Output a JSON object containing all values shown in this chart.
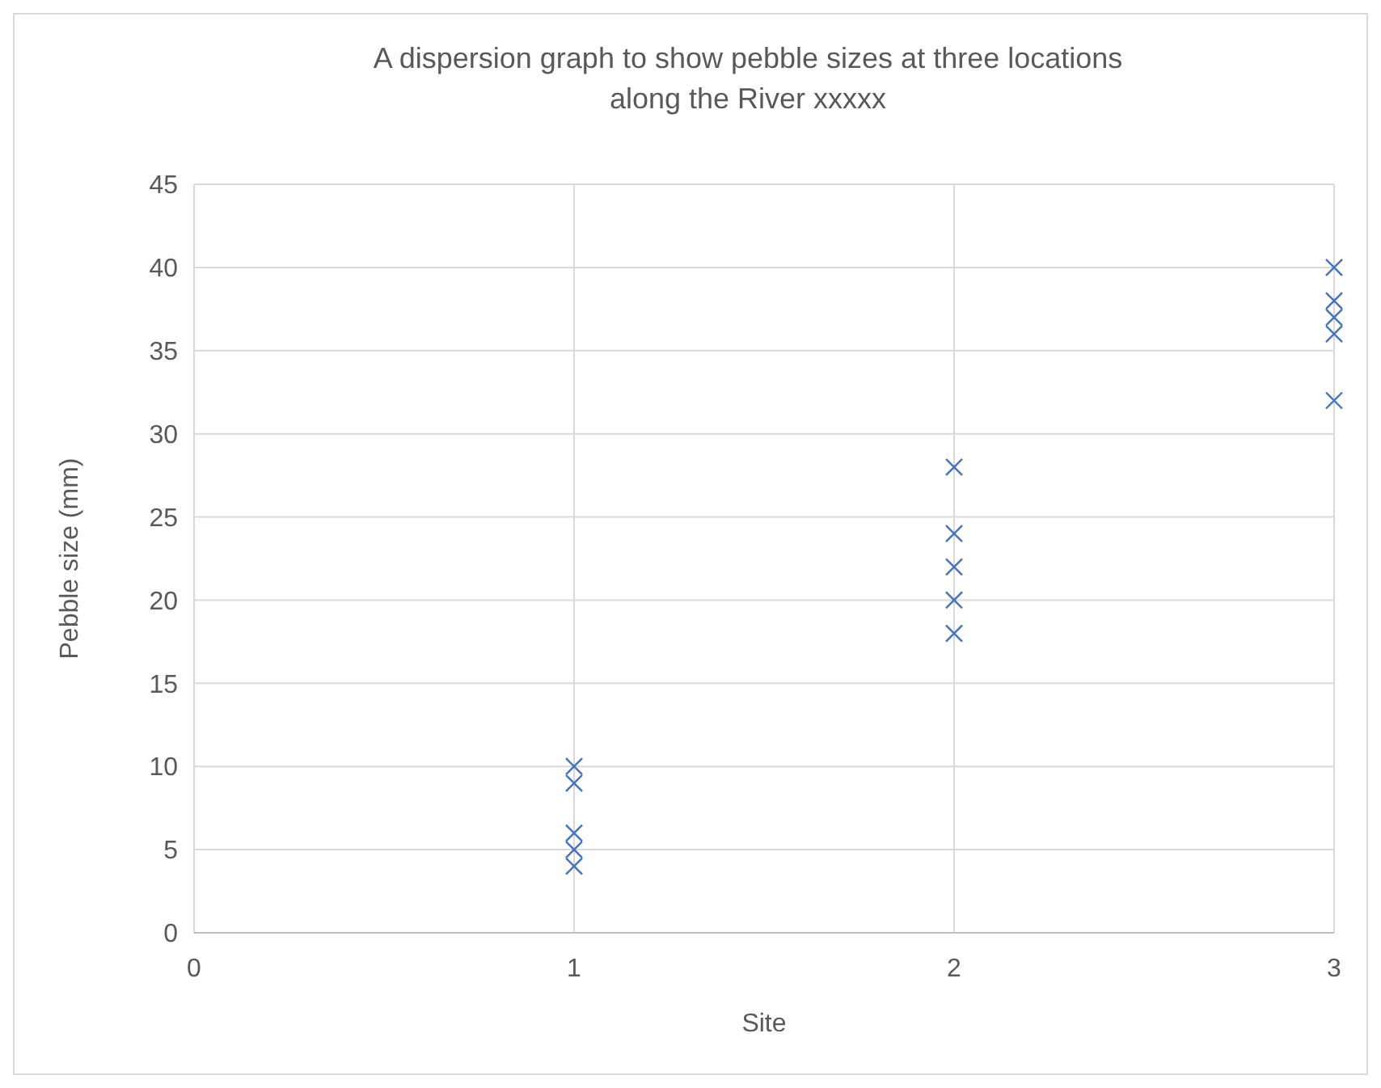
{
  "chart_data": {
    "type": "scatter",
    "title": "A dispersion graph to show pebble sizes at three locations along the River xxxxx",
    "xlabel": "Site",
    "ylabel": "Pebble size (mm)",
    "series": [
      {
        "color": "#4472c4",
        "x": [
          1,
          1,
          1,
          1,
          1,
          2,
          2,
          2,
          2,
          2,
          3,
          3,
          3,
          3,
          3
        ],
        "values": [
          10,
          9,
          6,
          5,
          4,
          28,
          24,
          22,
          20,
          18,
          40,
          38,
          37,
          36,
          32
        ]
      }
    ],
    "xlim": [
      0,
      3
    ],
    "xticks": [
      0,
      1,
      2,
      3
    ],
    "ylim": [
      0,
      45
    ],
    "yticks": [
      0,
      5,
      10,
      15,
      20,
      25,
      30,
      35,
      40,
      45
    ],
    "grid": true,
    "marker": "cross"
  }
}
